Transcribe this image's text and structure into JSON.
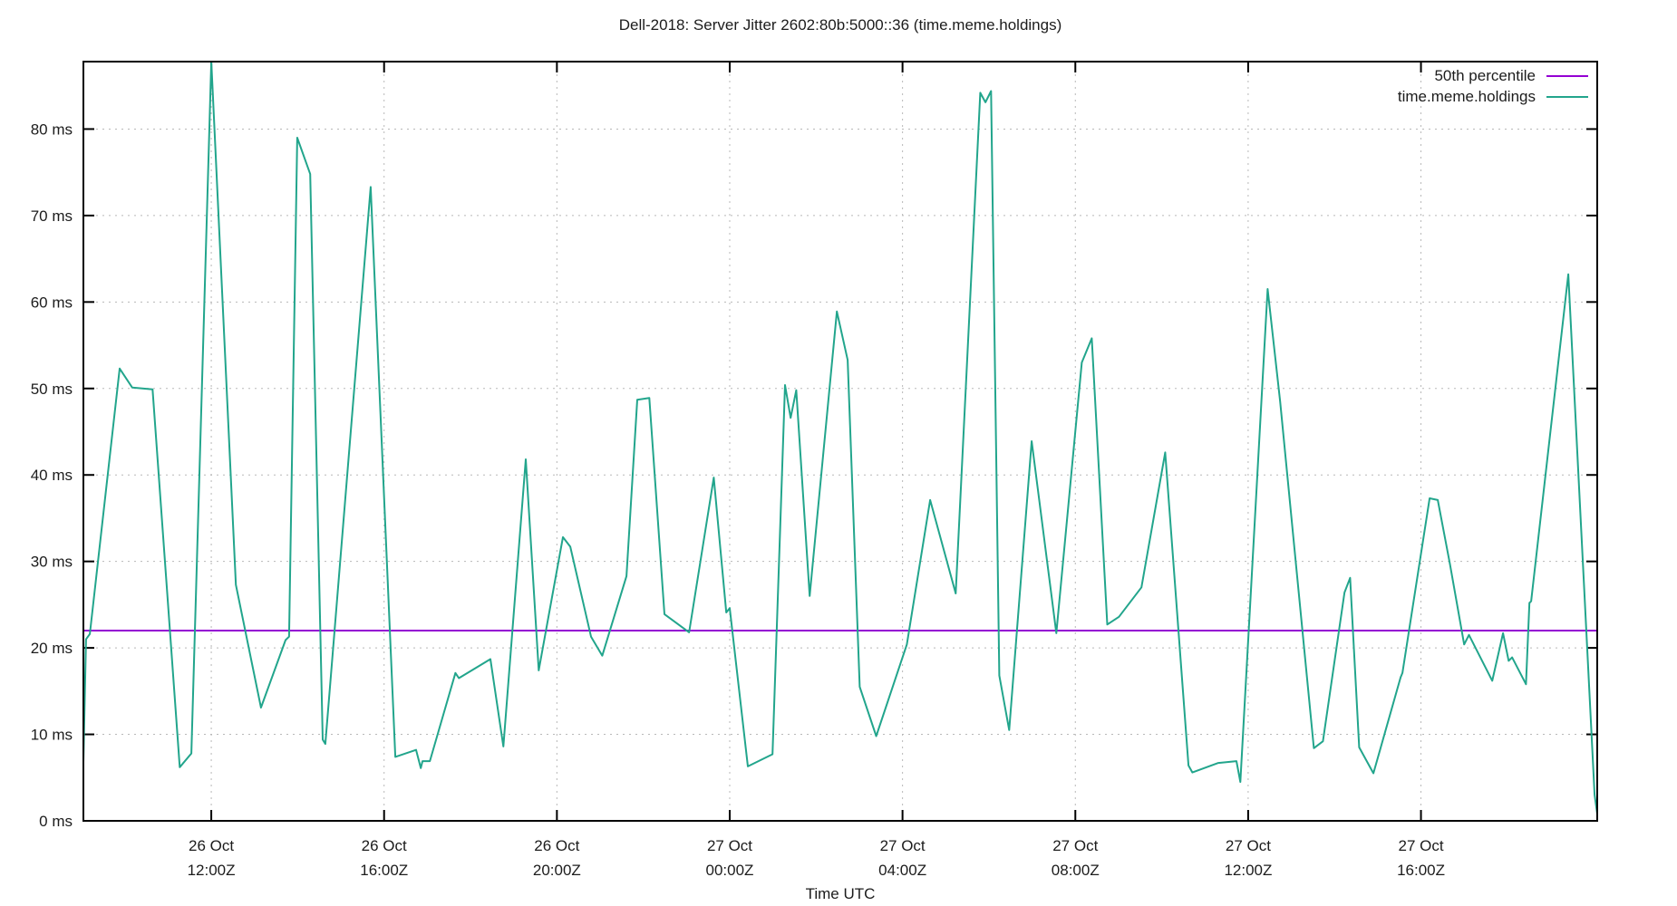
{
  "title": "Dell-2018: Server Jitter 2602:80b:5000::36 (time.meme.holdings)",
  "x_axis_title": "Time UTC",
  "legend": {
    "entries": [
      {
        "label": "50th percentile",
        "color": "#9400d3"
      },
      {
        "label": "time.meme.holdings",
        "color": "#22a58c"
      }
    ]
  },
  "chart_data": {
    "type": "line",
    "title": "Dell-2018: Server Jitter 2602:80b:5000::36 (time.meme.holdings)",
    "xlabel": "Time UTC",
    "ylabel": "",
    "x_unit": "hours since 26 Oct 00:00Z",
    "xlim": [
      9.04,
      44.08
    ],
    "ylim": [
      0,
      87.8
    ],
    "grid": true,
    "legend_position": "top-right-inside",
    "y_ticks": [
      {
        "v": 0,
        "label": "0 ms"
      },
      {
        "v": 10,
        "label": "10 ms"
      },
      {
        "v": 20,
        "label": "20 ms"
      },
      {
        "v": 30,
        "label": "30 ms"
      },
      {
        "v": 40,
        "label": "40 ms"
      },
      {
        "v": 50,
        "label": "50 ms"
      },
      {
        "v": 60,
        "label": "60 ms"
      },
      {
        "v": 70,
        "label": "70 ms"
      },
      {
        "v": 80,
        "label": "80 ms"
      }
    ],
    "x_ticks": [
      {
        "t": 12,
        "line1": "26 Oct",
        "line2": "12:00Z"
      },
      {
        "t": 16,
        "line1": "26 Oct",
        "line2": "16:00Z"
      },
      {
        "t": 20,
        "line1": "26 Oct",
        "line2": "20:00Z"
      },
      {
        "t": 24,
        "line1": "27 Oct",
        "line2": "00:00Z"
      },
      {
        "t": 28,
        "line1": "27 Oct",
        "line2": "04:00Z"
      },
      {
        "t": 32,
        "line1": "27 Oct",
        "line2": "08:00Z"
      },
      {
        "t": 36,
        "line1": "27 Oct",
        "line2": "12:00Z"
      },
      {
        "t": 40,
        "line1": "27 Oct",
        "line2": "16:00Z"
      }
    ],
    "series": [
      {
        "name": "50th percentile",
        "type": "hline",
        "value": 22,
        "color": "#9400d3"
      },
      {
        "name": "time.meme.holdings",
        "type": "line",
        "color": "#22a58c",
        "points": [
          [
            9.04,
            6.8
          ],
          [
            9.1,
            21.0
          ],
          [
            9.19,
            21.6
          ],
          [
            9.88,
            52.3
          ],
          [
            10.17,
            50.1
          ],
          [
            10.64,
            49.9
          ],
          [
            11.27,
            6.2
          ],
          [
            11.54,
            7.8
          ],
          [
            12.0,
            87.8
          ],
          [
            12.57,
            27.3
          ],
          [
            13.15,
            13.1
          ],
          [
            13.72,
            20.9
          ],
          [
            13.8,
            21.3
          ],
          [
            13.99,
            79.0
          ],
          [
            14.29,
            74.8
          ],
          [
            14.58,
            9.4
          ],
          [
            14.64,
            8.9
          ],
          [
            15.69,
            73.3
          ],
          [
            16.26,
            7.4
          ],
          [
            16.74,
            8.2
          ],
          [
            16.85,
            6.1
          ],
          [
            16.89,
            6.9
          ],
          [
            17.06,
            6.9
          ],
          [
            17.65,
            17.1
          ],
          [
            17.73,
            16.5
          ],
          [
            18.46,
            18.7
          ],
          [
            18.76,
            8.6
          ],
          [
            19.28,
            41.8
          ],
          [
            19.58,
            17.4
          ],
          [
            20.14,
            32.8
          ],
          [
            20.31,
            31.7
          ],
          [
            20.79,
            21.3
          ],
          [
            21.05,
            19.1
          ],
          [
            21.61,
            28.3
          ],
          [
            21.86,
            48.7
          ],
          [
            22.14,
            48.9
          ],
          [
            22.49,
            23.9
          ],
          [
            23.06,
            21.8
          ],
          [
            23.63,
            39.7
          ],
          [
            23.92,
            24.1
          ],
          [
            24.0,
            24.6
          ],
          [
            24.42,
            6.3
          ],
          [
            24.99,
            7.7
          ],
          [
            25.28,
            50.4
          ],
          [
            25.41,
            46.6
          ],
          [
            25.54,
            49.8
          ],
          [
            25.85,
            26.0
          ],
          [
            26.48,
            58.9
          ],
          [
            26.73,
            53.3
          ],
          [
            27.01,
            15.5
          ],
          [
            27.39,
            9.8
          ],
          [
            28.1,
            20.4
          ],
          [
            28.64,
            37.1
          ],
          [
            29.23,
            26.3
          ],
          [
            29.8,
            84.2
          ],
          [
            29.92,
            83.1
          ],
          [
            30.05,
            84.4
          ],
          [
            30.24,
            16.8
          ],
          [
            30.47,
            10.5
          ],
          [
            30.99,
            43.9
          ],
          [
            31.56,
            21.7
          ],
          [
            32.15,
            53.0
          ],
          [
            32.38,
            55.8
          ],
          [
            32.74,
            22.7
          ],
          [
            33.01,
            23.6
          ],
          [
            33.53,
            27.0
          ],
          [
            34.08,
            42.6
          ],
          [
            34.62,
            6.4
          ],
          [
            34.71,
            5.6
          ],
          [
            35.31,
            6.7
          ],
          [
            35.73,
            6.9
          ],
          [
            35.82,
            4.5
          ],
          [
            36.45,
            61.5
          ],
          [
            36.74,
            48.5
          ],
          [
            37.52,
            8.4
          ],
          [
            37.73,
            9.2
          ],
          [
            38.23,
            26.4
          ],
          [
            38.36,
            28.1
          ],
          [
            38.57,
            8.5
          ],
          [
            38.9,
            5.5
          ],
          [
            39.53,
            16.6
          ],
          [
            39.57,
            17.1
          ],
          [
            40.2,
            37.3
          ],
          [
            40.39,
            37.1
          ],
          [
            40.67,
            29.7
          ],
          [
            41.0,
            20.4
          ],
          [
            41.11,
            21.5
          ],
          [
            41.65,
            16.2
          ],
          [
            41.9,
            21.7
          ],
          [
            42.03,
            18.5
          ],
          [
            42.11,
            18.9
          ],
          [
            42.43,
            15.8
          ],
          [
            42.51,
            25.2
          ],
          [
            42.55,
            25.4
          ],
          [
            43.41,
            63.2
          ],
          [
            44.02,
            3.0
          ],
          [
            44.08,
            0.8
          ]
        ]
      }
    ],
    "style": {
      "background": "#ffffff",
      "border_color": "#000000",
      "grid_color": "#b8b8b8",
      "text_color": "#1c1c1c"
    }
  }
}
